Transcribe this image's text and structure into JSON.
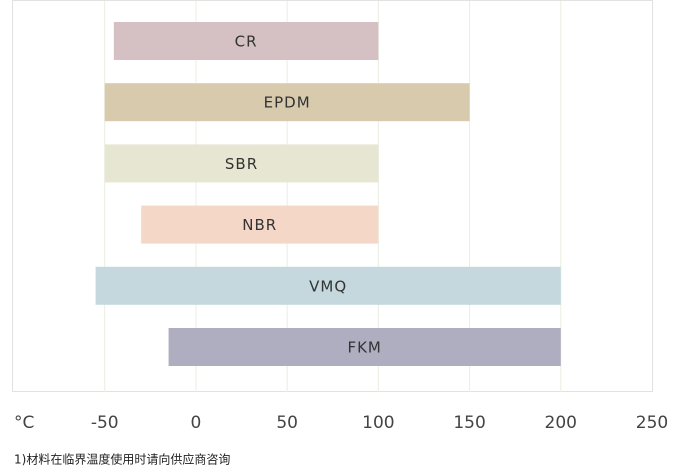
{
  "chart_data": {
    "type": "range_bar",
    "x_label": "°C",
    "categories": [
      "CR",
      "EPDM",
      "SBR",
      "NBR",
      "VMQ",
      "FKM"
    ],
    "low": [
      -45,
      -50,
      -50,
      -30,
      -55,
      -15
    ],
    "high": [
      100,
      150,
      100,
      100,
      200,
      200
    ],
    "colors": [
      "#d5c0c3",
      "#d7caad",
      "#e6e6d2",
      "#f4d7c7",
      "#c4d8dd",
      "#afaec1"
    ],
    "xlim": [
      -100,
      250
    ],
    "xticks": [
      -50,
      0,
      50,
      100,
      150,
      200,
      250
    ],
    "grid": true,
    "footnote": "1)材料在临界温度使用时请向供应商咨询"
  }
}
